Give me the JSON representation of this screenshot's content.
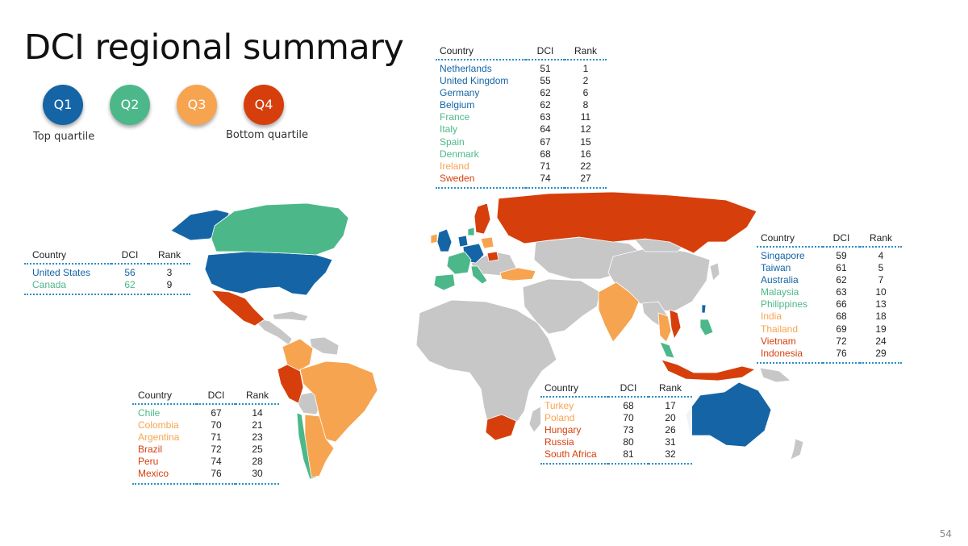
{
  "title": "DCI regional summary",
  "colors": {
    "q1": "#1565a6",
    "q2": "#4cb88a",
    "q3": "#f7a450",
    "q4": "#d63f0c",
    "no_data": "#c7c7c7"
  },
  "legend": {
    "items": [
      {
        "label": "Q1",
        "quartile": "q1"
      },
      {
        "label": "Q2",
        "quartile": "q2"
      },
      {
        "label": "Q3",
        "quartile": "q3"
      },
      {
        "label": "Q4",
        "quartile": "q4"
      }
    ],
    "top_label": "Top quartile",
    "bottom_label": "Bottom quartile"
  },
  "tables": {
    "europe": {
      "headers": [
        "Country",
        "DCI",
        "Rank"
      ],
      "rows": [
        {
          "country": "Netherlands",
          "dci": "51",
          "rank": "1",
          "quartile": "q1"
        },
        {
          "country": "United Kingdom",
          "dci": "55",
          "rank": "2",
          "quartile": "q1"
        },
        {
          "country": "Germany",
          "dci": "62",
          "rank": "6",
          "quartile": "q1"
        },
        {
          "country": "Belgium",
          "dci": "62",
          "rank": "8",
          "quartile": "q1"
        },
        {
          "country": "France",
          "dci": "63",
          "rank": "11",
          "quartile": "q2"
        },
        {
          "country": "Italy",
          "dci": "64",
          "rank": "12",
          "quartile": "q2"
        },
        {
          "country": "Spain",
          "dci": "67",
          "rank": "15",
          "quartile": "q2"
        },
        {
          "country": "Denmark",
          "dci": "68",
          "rank": "16",
          "quartile": "q2"
        },
        {
          "country": "Ireland",
          "dci": "71",
          "rank": "22",
          "quartile": "q3"
        },
        {
          "country": "Sweden",
          "dci": "74",
          "rank": "27",
          "quartile": "q4"
        }
      ]
    },
    "north_america": {
      "headers": [
        "Country",
        "DCI",
        "Rank"
      ],
      "rows": [
        {
          "country": "United States",
          "dci": "56",
          "rank": "3",
          "quartile": "q1"
        },
        {
          "country": "Canada",
          "dci": "62",
          "rank": "9",
          "quartile": "q2"
        }
      ]
    },
    "latin_america": {
      "headers": [
        "Country",
        "DCI",
        "Rank"
      ],
      "rows": [
        {
          "country": "Chile",
          "dci": "67",
          "rank": "14",
          "quartile": "q2"
        },
        {
          "country": "Colombia",
          "dci": "70",
          "rank": "21",
          "quartile": "q3"
        },
        {
          "country": "Argentina",
          "dci": "71",
          "rank": "23",
          "quartile": "q3"
        },
        {
          "country": "Brazil",
          "dci": "72",
          "rank": "25",
          "quartile": "q4"
        },
        {
          "country": "Peru",
          "dci": "74",
          "rank": "28",
          "quartile": "q4"
        },
        {
          "country": "Mexico",
          "dci": "76",
          "rank": "30",
          "quartile": "q4"
        }
      ]
    },
    "emerging_europe_africa": {
      "headers": [
        "Country",
        "DCI",
        "Rank"
      ],
      "rows": [
        {
          "country": "Turkey",
          "dci": "68",
          "rank": "17",
          "quartile": "q3"
        },
        {
          "country": "Poland",
          "dci": "70",
          "rank": "20",
          "quartile": "q3"
        },
        {
          "country": "Hungary",
          "dci": "73",
          "rank": "26",
          "quartile": "q4"
        },
        {
          "country": "Russia",
          "dci": "80",
          "rank": "31",
          "quartile": "q4"
        },
        {
          "country": "South Africa",
          "dci": "81",
          "rank": "32",
          "quartile": "q4"
        }
      ]
    },
    "asia_pacific": {
      "headers": [
        "Country",
        "DCI",
        "Rank"
      ],
      "rows": [
        {
          "country": "Singapore",
          "dci": "59",
          "rank": "4",
          "quartile": "q1"
        },
        {
          "country": "Taiwan",
          "dci": "61",
          "rank": "5",
          "quartile": "q1"
        },
        {
          "country": "Australia",
          "dci": "62",
          "rank": "7",
          "quartile": "q1"
        },
        {
          "country": "Malaysia",
          "dci": "63",
          "rank": "10",
          "quartile": "q2"
        },
        {
          "country": "Philippines",
          "dci": "66",
          "rank": "13",
          "quartile": "q2"
        },
        {
          "country": "India",
          "dci": "68",
          "rank": "18",
          "quartile": "q3"
        },
        {
          "country": "Thailand",
          "dci": "69",
          "rank": "19",
          "quartile": "q3"
        },
        {
          "country": "Vietnam",
          "dci": "72",
          "rank": "24",
          "quartile": "q4"
        },
        {
          "country": "Indonesia",
          "dci": "76",
          "rank": "29",
          "quartile": "q4"
        }
      ]
    }
  },
  "page_number": "54"
}
